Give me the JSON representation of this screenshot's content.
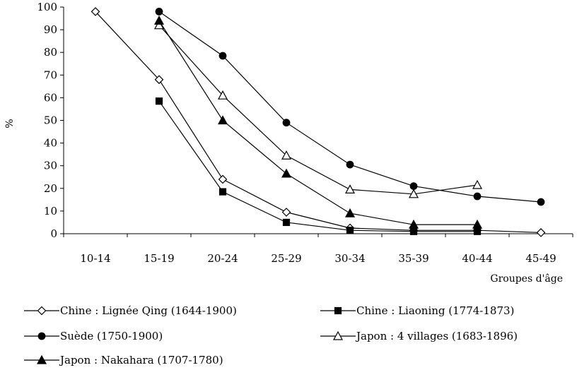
{
  "chart_data": {
    "type": "line",
    "title": "",
    "xlabel": "Groupes d'âge",
    "ylabel": "%",
    "ylim": [
      0,
      100
    ],
    "yticks": [
      0,
      10,
      20,
      30,
      40,
      50,
      60,
      70,
      80,
      90,
      100
    ],
    "categories": [
      "10-14",
      "15-19",
      "20-24",
      "25-29",
      "30-34",
      "35-39",
      "40-44",
      "45-49"
    ],
    "grid": false,
    "legend_position": "bottom",
    "series": [
      {
        "name": "Chine : Lignée Qing (1644-1900)",
        "marker": "diamond-open",
        "values": [
          98,
          68,
          24,
          9.5,
          2.5,
          1.5,
          1.5,
          0.5
        ]
      },
      {
        "name": "Chine : Liaoning (1774-1873)",
        "marker": "square-filled",
        "values": [
          null,
          58.5,
          18.5,
          5,
          1.5,
          1,
          1,
          null
        ]
      },
      {
        "name": "Suède (1750-1900)",
        "marker": "circle-filled",
        "values": [
          null,
          98,
          78.5,
          49,
          30.5,
          21,
          16.5,
          14
        ]
      },
      {
        "name": "Japon : 4 villages (1683-1896)",
        "marker": "triangle-open",
        "values": [
          null,
          92,
          61,
          34.5,
          19.5,
          17.5,
          21.5,
          null
        ]
      },
      {
        "name": "Japon : Nakahara (1707-1780)",
        "marker": "triangle-filled",
        "values": [
          null,
          94,
          50,
          26.5,
          9,
          4,
          4,
          null
        ]
      }
    ]
  }
}
